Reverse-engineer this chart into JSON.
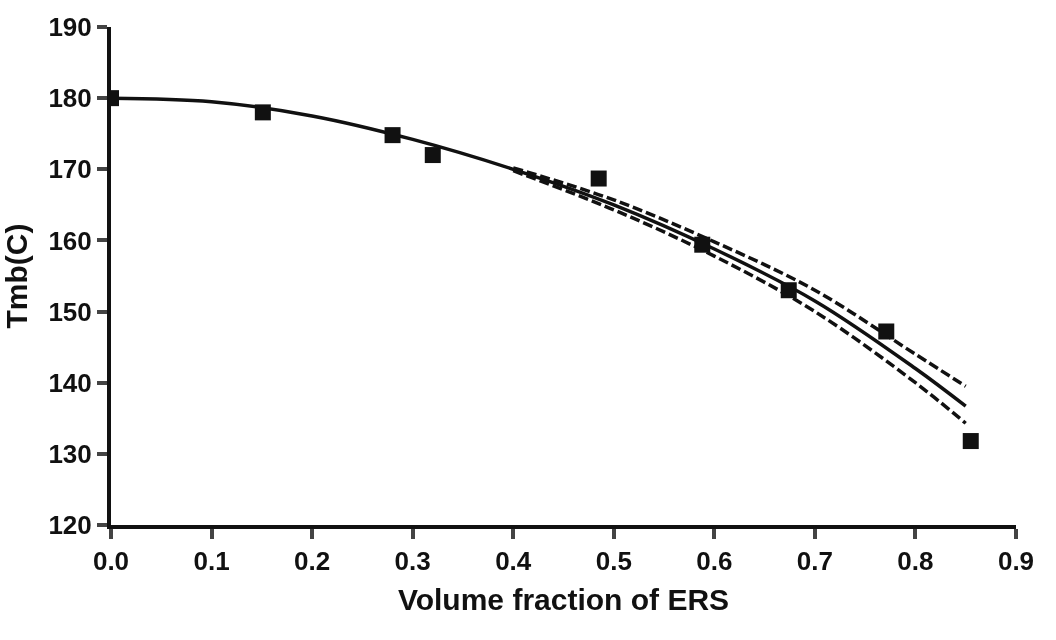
{
  "chart_data": {
    "type": "scatter",
    "xlabel": "Volume fraction of ERS",
    "ylabel": "Tmb(C)",
    "xlim": [
      0,
      0.9
    ],
    "xticks": [
      "0.0",
      0.1,
      0.2,
      0.3,
      0.4,
      0.5,
      0.6,
      0.7,
      0.8,
      0.9
    ],
    "ylim": [
      120,
      190
    ],
    "yticks": [
      120,
      130,
      140,
      150,
      160,
      170,
      180,
      190
    ],
    "legend": false,
    "marker": "square",
    "series": [
      {
        "color": "#111111",
        "x": [
          0,
          0.151,
          0.28,
          0.32,
          0.485,
          0.588,
          0.674,
          0.771,
          0.855
        ],
        "values": [
          180,
          178,
          174.8,
          172,
          168.7,
          159.4,
          153,
          147.2,
          131.8
        ]
      },
      {
        "type": "line",
        "color": "#111111",
        "marker": "none",
        "line_style": "solid",
        "x": [
          0,
          0.1,
          0.2,
          0.3,
          0.4,
          0.5,
          0.6,
          0.7,
          0.8,
          0.85
        ],
        "values": [
          180,
          179.5,
          177.5,
          174.2,
          170,
          165,
          158.8,
          151.5,
          142,
          136.7
        ]
      },
      {
        "type": "line",
        "color": "#111111",
        "marker": "none",
        "line_style": "dashed",
        "x": [
          0.4,
          0.5,
          0.6,
          0.7,
          0.8,
          0.85
        ],
        "values": [
          170.2,
          165.7,
          159.8,
          153,
          144,
          139.5
        ]
      },
      {
        "type": "line",
        "color": "#111111",
        "marker": "none",
        "line_style": "dashed",
        "x": [
          0.4,
          0.5,
          0.6,
          0.7,
          0.8,
          0.85
        ],
        "values": [
          169.8,
          164.3,
          157.8,
          150,
          140,
          134.3
        ]
      }
    ]
  }
}
